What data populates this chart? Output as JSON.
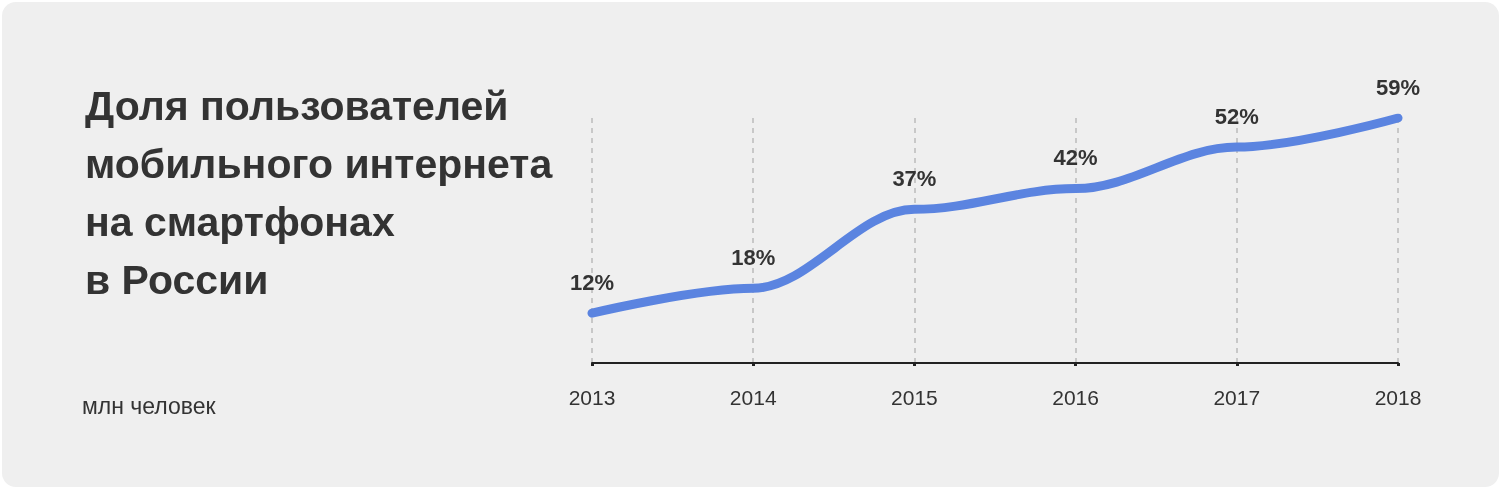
{
  "chart_data": {
    "type": "line",
    "title": "Доля пользователей\nмобильного интернета\nна смартфонах\nв России",
    "annotations": [
      "млн человек"
    ],
    "categories": [
      "2013",
      "2014",
      "2015",
      "2016",
      "2017",
      "2018"
    ],
    "series": [
      {
        "color": "#5b84e0",
        "values": [
          12,
          18,
          37,
          42,
          52,
          59
        ],
        "value_labels": [
          "12%",
          "18%",
          "37%",
          "42%",
          "52%",
          "59%"
        ]
      }
    ],
    "grid": "x",
    "marker": "none",
    "line_style": "solid"
  }
}
